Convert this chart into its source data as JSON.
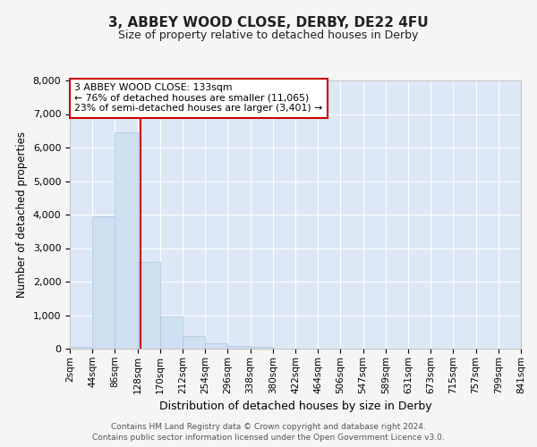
{
  "title": "3, ABBEY WOOD CLOSE, DERBY, DE22 4FU",
  "subtitle": "Size of property relative to detached houses in Derby",
  "xlabel": "Distribution of detached houses by size in Derby",
  "ylabel": "Number of detached properties",
  "bar_color": "#cfe0f0",
  "bar_edge_color": "#a8c4de",
  "background_color": "#dce8f5",
  "grid_color": "#ffffff",
  "fig_facecolor": "#f5f5f5",
  "bin_labels": [
    "2sqm",
    "44sqm",
    "86sqm",
    "128sqm",
    "170sqm",
    "212sqm",
    "254sqm",
    "296sqm",
    "338sqm",
    "380sqm",
    "422sqm",
    "464sqm",
    "506sqm",
    "547sqm",
    "589sqm",
    "631sqm",
    "673sqm",
    "715sqm",
    "757sqm",
    "799sqm",
    "841sqm"
  ],
  "bar_heights": [
    50,
    3950,
    6450,
    2600,
    950,
    380,
    150,
    80,
    50,
    0,
    0,
    0,
    0,
    0,
    0,
    0,
    0,
    0,
    0,
    0
  ],
  "vline_x": 3.119,
  "annotation_title": "3 ABBEY WOOD CLOSE: 133sqm",
  "annotation_line1": "← 76% of detached houses are smaller (11,065)",
  "annotation_line2": "23% of semi-detached houses are larger (3,401) →",
  "annotation_box_facecolor": "#ffffff",
  "annotation_border_color": "#cc0000",
  "vline_color": "#cc0000",
  "ylim": [
    0,
    8000
  ],
  "yticks": [
    0,
    1000,
    2000,
    3000,
    4000,
    5000,
    6000,
    7000,
    8000
  ],
  "footer_line1": "Contains HM Land Registry data © Crown copyright and database right 2024.",
  "footer_line2": "Contains public sector information licensed under the Open Government Licence v3.0."
}
